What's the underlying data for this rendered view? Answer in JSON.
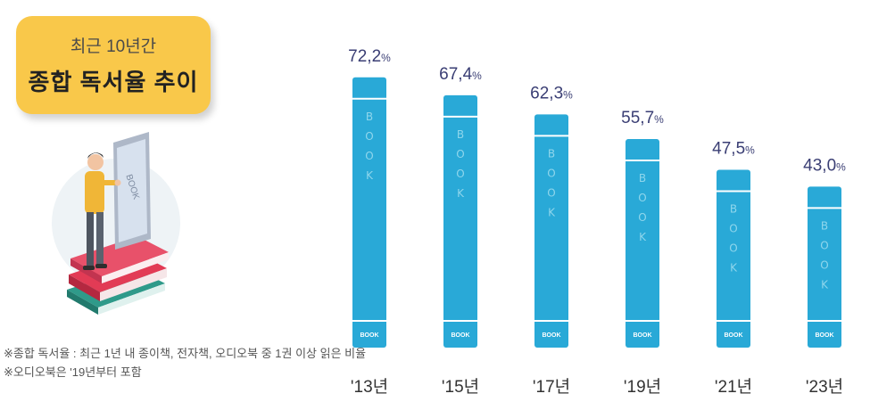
{
  "header": {
    "subtitle": "최근 10년간",
    "title": "종합 독서율 추이"
  },
  "notes": [
    "※종합 독서율 : 최근 1년 내 종이책, 전자책, 오디오북 중 1권 이상 읽은 비율",
    "※오디오북은 '19년부터 포함"
  ],
  "illustration": {
    "screen_text": "BOOK"
  },
  "chart_data": {
    "type": "bar",
    "categories": [
      "'13년",
      "'15년",
      "'17년",
      "'19년",
      "'21년",
      "'23년"
    ],
    "values": [
      72.2,
      67.4,
      62.3,
      55.7,
      47.5,
      43.0
    ],
    "value_labels": [
      "72,2",
      "67,4",
      "62,3",
      "55,7",
      "47,5",
      "43,0"
    ],
    "unit": "%",
    "title": "종합 독서율 추이",
    "ylim": [
      0,
      80
    ],
    "grid": false,
    "bar_color": "#29a9d7",
    "bar_spine_text": "BOOK",
    "bar_bottom_text": "BOOK"
  }
}
